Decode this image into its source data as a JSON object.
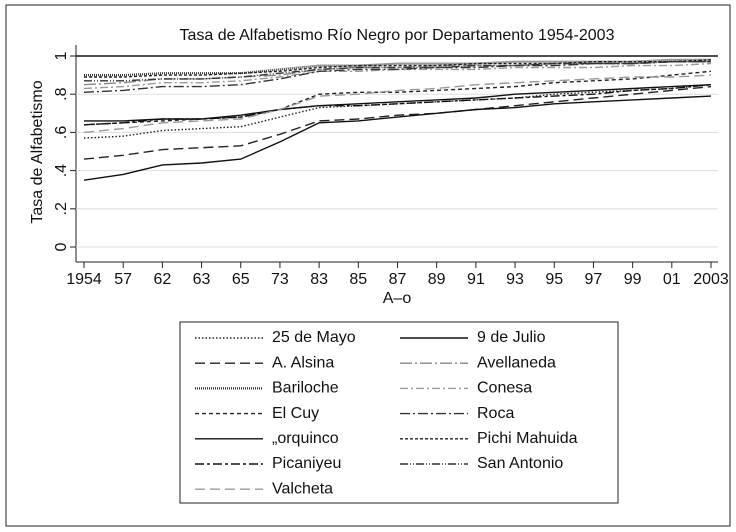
{
  "chart_data": {
    "type": "line",
    "title": "Tasa de Alfabetismo Río Negro por Departamento 1954-2003",
    "x_label": "A–o",
    "y_label": "Tasa de Alfabetismo",
    "categories": [
      "1954",
      "57",
      "62",
      "63",
      "65",
      "73",
      "83",
      "85",
      "87",
      "89",
      "91",
      "93",
      "95",
      "97",
      "99",
      "01",
      "2003"
    ],
    "ylim": [
      -0.04,
      1.0
    ],
    "yticks": [
      0,
      {
        "value": 0.2,
        "label": ".2"
      },
      {
        "value": 0.4,
        "label": ".4"
      },
      {
        "value": 0.6,
        "label": ".6"
      },
      {
        "value": 0.8,
        "label": ".8"
      },
      1
    ],
    "grid": true,
    "series": [
      {
        "name": "25 de Mayo",
        "color": "#222222",
        "dash": "1.5,2",
        "values": [
          0.57,
          0.58,
          0.61,
          0.62,
          0.63,
          0.68,
          0.73,
          0.74,
          0.75,
          0.76,
          0.77,
          0.78,
          0.8,
          0.81,
          0.82,
          0.83,
          0.85
        ]
      },
      {
        "name": "9 de Julio",
        "color": "#111111",
        "dash": "none",
        "values": [
          0.66,
          0.66,
          0.67,
          0.67,
          0.69,
          0.72,
          0.74,
          0.75,
          0.76,
          0.77,
          0.78,
          0.8,
          0.81,
          0.82,
          0.83,
          0.84,
          0.85
        ]
      },
      {
        "name": "A. Alsina",
        "color": "#222222",
        "dash": "10,5",
        "values": [
          0.46,
          0.48,
          0.51,
          0.52,
          0.53,
          0.59,
          0.66,
          0.67,
          0.69,
          0.7,
          0.72,
          0.74,
          0.76,
          0.78,
          0.8,
          0.82,
          0.84
        ]
      },
      {
        "name": "Avellaneda",
        "color": "#888888",
        "dash": "12,3,2,3",
        "values": [
          0.85,
          0.86,
          0.88,
          0.88,
          0.89,
          0.9,
          0.93,
          0.94,
          0.94,
          0.95,
          0.95,
          0.95,
          0.96,
          0.96,
          0.96,
          0.97,
          0.97
        ]
      },
      {
        "name": "Bariloche",
        "color": "#333333",
        "dash": "1,1",
        "values": [
          0.9,
          0.9,
          0.91,
          0.91,
          0.91,
          0.93,
          0.95,
          0.95,
          0.96,
          0.96,
          0.96,
          0.97,
          0.97,
          0.97,
          0.97,
          0.98,
          0.98
        ]
      },
      {
        "name": "Conesa",
        "color": "#999999",
        "dash": "8,3,2,3",
        "values": [
          0.83,
          0.84,
          0.86,
          0.86,
          0.87,
          0.89,
          0.92,
          0.92,
          0.93,
          0.93,
          0.93,
          0.94,
          0.94,
          0.94,
          0.95,
          0.95,
          0.96
        ]
      },
      {
        "name": "El Cuy",
        "color": "#222222",
        "dash": "4,3",
        "values": [
          0.64,
          0.65,
          0.66,
          0.67,
          0.68,
          0.72,
          0.8,
          0.81,
          0.81,
          0.82,
          0.83,
          0.84,
          0.86,
          0.87,
          0.88,
          0.9,
          0.92
        ]
      },
      {
        "name": "Roca",
        "color": "#333333",
        "dash": "10,3,2,3",
        "values": [
          0.81,
          0.82,
          0.84,
          0.84,
          0.85,
          0.88,
          0.92,
          0.93,
          0.93,
          0.94,
          0.94,
          0.95,
          0.95,
          0.96,
          0.96,
          0.97,
          0.97
        ]
      },
      {
        "name": "„orquinco",
        "color": "#111111",
        "dash": "none",
        "values": [
          0.35,
          0.38,
          0.43,
          0.44,
          0.46,
          0.55,
          0.65,
          0.66,
          0.68,
          0.7,
          0.72,
          0.73,
          0.75,
          0.76,
          0.77,
          0.78,
          0.79
        ]
      },
      {
        "name": "Pichi Mahuida",
        "color": "#222222",
        "dash": "3,2",
        "values": [
          0.89,
          0.89,
          0.9,
          0.9,
          0.91,
          0.92,
          0.94,
          0.95,
          0.95,
          0.95,
          0.96,
          0.96,
          0.96,
          0.97,
          0.97,
          0.97,
          0.98
        ]
      },
      {
        "name": "Picaniyeu",
        "color": "#111111",
        "dash": "9,3,3,3",
        "values": [
          0.64,
          0.65,
          0.67,
          0.67,
          0.68,
          0.72,
          0.74,
          0.74,
          0.75,
          0.76,
          0.77,
          0.78,
          0.79,
          0.8,
          0.82,
          0.83,
          0.85
        ]
      },
      {
        "name": "San Antonio",
        "color": "#333333",
        "dash": "8,2,1,2,1,2",
        "values": [
          0.87,
          0.87,
          0.88,
          0.88,
          0.89,
          0.91,
          0.93,
          0.94,
          0.94,
          0.94,
          0.95,
          0.95,
          0.96,
          0.96,
          0.96,
          0.97,
          0.97
        ]
      },
      {
        "name": "Valcheta",
        "color": "#999999",
        "dash": "10,5",
        "values": [
          0.6,
          0.62,
          0.65,
          0.66,
          0.67,
          0.72,
          0.79,
          0.8,
          0.82,
          0.83,
          0.85,
          0.86,
          0.87,
          0.88,
          0.89,
          0.89,
          0.9
        ]
      }
    ]
  }
}
